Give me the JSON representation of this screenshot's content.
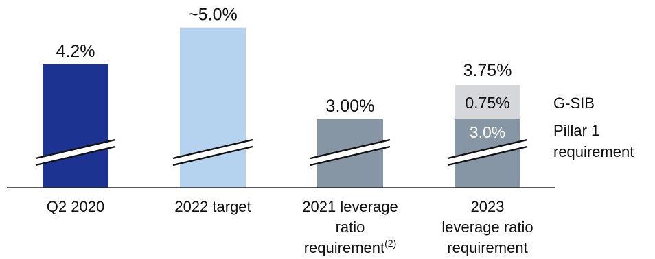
{
  "chart_data": {
    "type": "bar",
    "categories": [
      [
        "Q2 2020"
      ],
      [
        "2022 target"
      ],
      [
        "2021 leverage",
        "ratio",
        "requirement"
      ],
      [
        "2023",
        "leverage ratio",
        "requirement"
      ]
    ],
    "category_superscripts": [
      "",
      "",
      "(2)",
      ""
    ],
    "bars": [
      {
        "category": "Q2 2020",
        "value": 4.2,
        "label": "4.2%",
        "color": "#1c3391"
      },
      {
        "category": "2022 target",
        "value": 5.0,
        "label": "~5.0%",
        "color": "#b5d2ef"
      },
      {
        "category": "2021 leverage ratio requirement",
        "value": 3.0,
        "label": "3.00%",
        "color": "#8796a5"
      },
      {
        "category": "2023 leverage ratio requirement",
        "total_label": "3.75%",
        "segments": [
          {
            "name": "Pillar 1 requirement",
            "value": 3.0,
            "label": "3.0%",
            "color": "#8796a5"
          },
          {
            "name": "G-SIB",
            "value": 0.75,
            "label": "0.75%",
            "color": "#d5d7da"
          }
        ]
      }
    ],
    "legend": [
      {
        "lines": [
          "G-SIB"
        ],
        "segment": "G-SIB"
      },
      {
        "lines": [
          "Pillar 1",
          "requirement"
        ],
        "segment": "Pillar 1 requirement"
      }
    ],
    "axis_break": true,
    "grid": false,
    "title": "",
    "xlabel": "",
    "ylabel": ""
  }
}
